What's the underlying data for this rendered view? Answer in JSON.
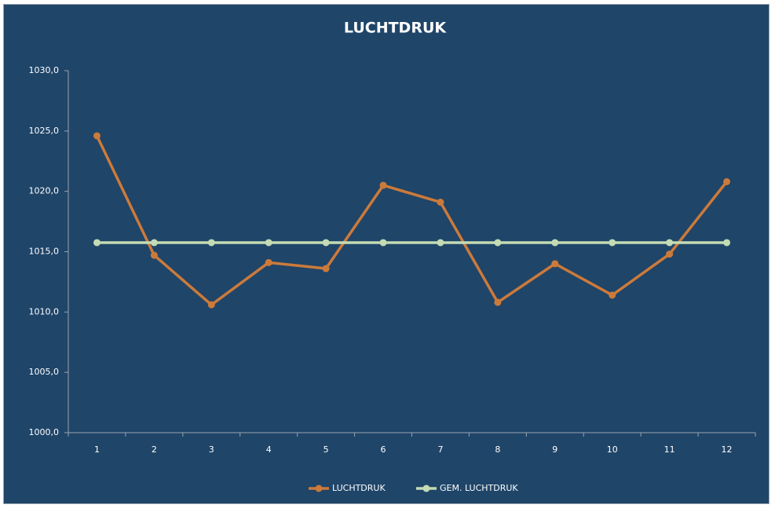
{
  "chart_data": {
    "type": "line",
    "title": "LUCHTDRUK",
    "categories": [
      "1",
      "2",
      "3",
      "4",
      "5",
      "6",
      "7",
      "8",
      "9",
      "10",
      "11",
      "12"
    ],
    "series": [
      {
        "name": "LUCHTDRUK",
        "color": "#cc7a3a",
        "values": [
          1024.6,
          1014.7,
          1010.6,
          1014.1,
          1013.6,
          1020.5,
          1019.1,
          1010.8,
          1014.0,
          1011.4,
          1014.8,
          1020.8
        ]
      },
      {
        "name": "GEM. LUCHTDRUK",
        "color": "#c4dbb4",
        "values": [
          1015.75,
          1015.75,
          1015.75,
          1015.75,
          1015.75,
          1015.75,
          1015.75,
          1015.75,
          1015.75,
          1015.75,
          1015.75,
          1015.75
        ]
      }
    ],
    "ylim": [
      1000,
      1030
    ],
    "yticks": [
      {
        "value": 1000,
        "label": "1000,0"
      },
      {
        "value": 1005,
        "label": "1005,0"
      },
      {
        "value": 1010,
        "label": "1010,0"
      },
      {
        "value": 1015,
        "label": "1015,0"
      },
      {
        "value": 1020,
        "label": "1020,0"
      },
      {
        "value": 1025,
        "label": "1025,0"
      },
      {
        "value": 1030,
        "label": "1030,0"
      }
    ],
    "legend": "bottom"
  }
}
